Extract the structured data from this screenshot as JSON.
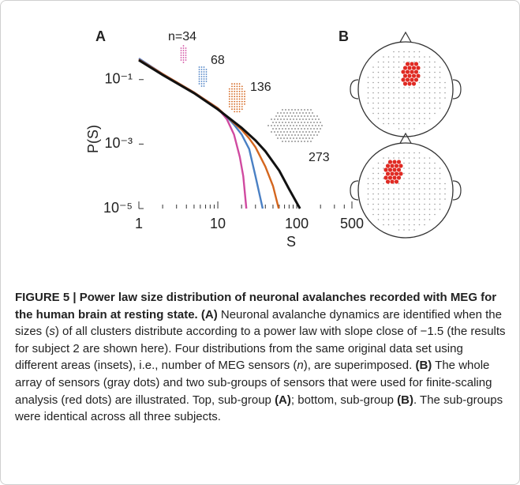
{
  "chart_data": {
    "type": "line",
    "panel_label": "A",
    "x_label": "S",
    "y_label": "P(S)",
    "log_x": true,
    "log_y": true,
    "xlim": [
      1,
      500
    ],
    "ylim": [
      1e-05,
      1
    ],
    "xticks": [
      1,
      10,
      100,
      500
    ],
    "xminor_ticks": [
      2,
      3,
      4,
      5,
      6,
      7,
      8,
      9,
      20,
      30,
      40,
      50,
      60,
      70,
      80,
      90,
      200,
      300,
      400
    ],
    "yticks": [
      {
        "value": 0.1,
        "label": "10⁻¹"
      },
      {
        "value": 0.001,
        "label": "10⁻³"
      },
      {
        "value": 1e-05,
        "label": "10⁻⁵"
      }
    ],
    "series": [
      {
        "name": "n=34",
        "color": "#d04aa0",
        "x": [
          1,
          2,
          5,
          10,
          13,
          16,
          19,
          21,
          23
        ],
        "values": [
          0.45,
          0.15,
          0.04,
          0.013,
          0.006,
          0.002,
          0.0004,
          0.0001,
          1e-05
        ]
      },
      {
        "name": "68",
        "color": "#4a80c4",
        "x": [
          1,
          2,
          5,
          10,
          13,
          16,
          20,
          25,
          30,
          37
        ],
        "values": [
          0.45,
          0.15,
          0.04,
          0.013,
          0.007,
          0.004,
          0.002,
          0.0007,
          0.0001,
          1e-05
        ]
      },
      {
        "name": "136",
        "color": "#d4661e",
        "x": [
          1,
          2,
          5,
          10,
          16,
          20,
          25,
          30,
          40,
          50,
          59
        ],
        "values": [
          0.42,
          0.15,
          0.04,
          0.013,
          0.0045,
          0.0028,
          0.0015,
          0.0008,
          0.0002,
          5e-05,
          1e-05
        ]
      },
      {
        "name": "273",
        "color": "#111111",
        "x": [
          1,
          2,
          5,
          10,
          20,
          30,
          40,
          60,
          80,
          100,
          110
        ],
        "values": [
          0.4,
          0.14,
          0.038,
          0.012,
          0.0032,
          0.0013,
          0.0006,
          0.00015,
          4e-05,
          1.5e-05,
          1e-05
        ]
      }
    ]
  },
  "panel_b": {
    "label": "B"
  },
  "caption": {
    "title": "FIGURE 5 | Power law size distribution of neuronal avalanches recorded with MEG for the human brain at resting state.",
    "parts": [
      " (A)",
      " Neuronal avalanche dynamics are identified when the sizes (",
      "s",
      ") of all clusters distribute according to a power law with slope close of −1.5 (the results for subject 2 are shown here). Four distributions from the same original data set using different areas (insets), i.e., number of MEG sensors (",
      "n",
      "), are superimposed. ",
      "(B)",
      " The whole array of sensors (gray dots) and two sub-groups of sensors that were used for finite-scaling analysis (red dots) are illustrated. Top, sub-group ",
      "(A)",
      "; bottom, sub-group ",
      "(B)",
      ". The sub-groups were identical across all three subjects."
    ]
  }
}
